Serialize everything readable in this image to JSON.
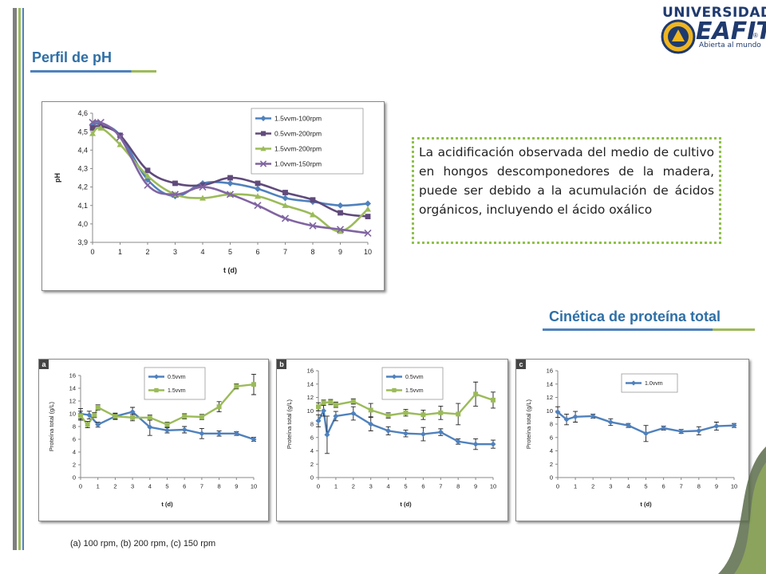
{
  "headings": {
    "ph": "Perfil de pH",
    "protein": "Cinética de proteína total"
  },
  "logo": {
    "university": "UNIVERSIDAD",
    "name": "EAFIT",
    "registered": "®",
    "tagline": "Abierta al mundo"
  },
  "note": "La acidificación observada del medio de cultivo en hongos descomponedores de la madera, puede ser debido a la acumulación de ácidos orgánicos, incluyendo el ácido oxálico",
  "caption": "(a) 100 rpm, (b) 200 rpm, (c) 150 rpm",
  "colors": {
    "blue": "#4f81bd",
    "purple": "#604a7b",
    "green": "#9bbb59",
    "lavender": "#8064a2",
    "heading": "#2f6fa6"
  },
  "chart_data": [
    {
      "id": "ph",
      "type": "line",
      "xlabel": "t (d)",
      "ylabel": "pH",
      "xlim": [
        0,
        10
      ],
      "ylim": [
        3.9,
        4.6
      ],
      "xticks": [
        "0",
        "1",
        "2",
        "3",
        "4",
        "5",
        "6",
        "7",
        "8",
        "9",
        "10"
      ],
      "yticks": [
        "3,9",
        "4,0",
        "4,1",
        "4,2",
        "4,3",
        "4,4",
        "4,5",
        "4,6"
      ],
      "legend": "top-right",
      "series": [
        {
          "name": "1.5vvm-100rpm",
          "color": "#4f81bd",
          "marker": "diamond",
          "x": [
            0,
            0.3,
            1,
            2,
            3,
            4,
            5,
            6,
            7,
            8,
            9,
            10
          ],
          "values": [
            4.54,
            4.54,
            4.48,
            4.24,
            4.15,
            4.22,
            4.22,
            4.19,
            4.14,
            4.12,
            4.1,
            4.11
          ]
        },
        {
          "name": "0.5vvm-200rpm",
          "color": "#604a7b",
          "marker": "square",
          "x": [
            0,
            0.3,
            1,
            2,
            3,
            4,
            5,
            6,
            7,
            8,
            9,
            10
          ],
          "values": [
            4.52,
            4.53,
            4.48,
            4.29,
            4.22,
            4.21,
            4.25,
            4.22,
            4.17,
            4.13,
            4.06,
            4.04
          ]
        },
        {
          "name": "1.5vvm-200rpm",
          "color": "#9bbb59",
          "marker": "triangle",
          "x": [
            0,
            0.3,
            1,
            2,
            3,
            4,
            5,
            6,
            7,
            8,
            9,
            10
          ],
          "values": [
            4.49,
            4.52,
            4.43,
            4.26,
            4.16,
            4.14,
            4.16,
            4.15,
            4.1,
            4.05,
            3.96,
            4.08
          ]
        },
        {
          "name": "1.0vvm-150rpm",
          "color": "#8064a2",
          "marker": "x",
          "x": [
            0,
            0.3,
            1,
            2,
            3,
            4,
            5,
            6,
            7,
            8,
            9,
            10
          ],
          "values": [
            4.55,
            4.55,
            4.47,
            4.21,
            4.16,
            4.2,
            4.16,
            4.1,
            4.03,
            3.99,
            3.97,
            3.95
          ]
        }
      ]
    },
    {
      "id": "a",
      "panel_label": "a",
      "type": "line",
      "xlabel": "t  (d)",
      "ylabel": "Proteína total (g/L)",
      "xlim": [
        0,
        10
      ],
      "ylim": [
        0,
        16
      ],
      "xticks": [
        "0",
        "1",
        "2",
        "3",
        "4",
        "5",
        "6",
        "7",
        "8",
        "9",
        "10"
      ],
      "yticks": [
        "0",
        "2",
        "4",
        "6",
        "8",
        "10",
        "12",
        "14",
        "16"
      ],
      "legend": "top-center",
      "series": [
        {
          "name": "0.5vvm",
          "color": "#4f81bd",
          "marker": "diamond",
          "x": [
            0,
            0.5,
            1,
            2,
            3,
            4,
            5,
            6,
            7,
            8,
            9,
            10
          ],
          "values": [
            10.0,
            9.8,
            8.3,
            9.6,
            10.3,
            7.9,
            7.4,
            7.5,
            6.9,
            6.9,
            6.9,
            6.0
          ],
          "err": [
            0.8,
            0.6,
            0.4,
            0.5,
            0.7,
            1.3,
            0.4,
            0.5,
            0.8,
            0.4,
            0.3,
            0.3
          ]
        },
        {
          "name": "1.5vvm",
          "color": "#9bbb59",
          "marker": "square",
          "x": [
            0,
            0.4,
            0.8,
            1,
            2,
            3,
            4,
            5,
            6,
            7,
            8,
            9,
            10
          ],
          "values": [
            9.7,
            8.3,
            9.8,
            11.0,
            9.6,
            9.4,
            9.4,
            8.3,
            9.6,
            9.5,
            11.1,
            14.3,
            14.6
          ],
          "err": [
            0.7,
            0.5,
            0.4,
            0.4,
            0.4,
            0.5,
            0.4,
            0.4,
            0.4,
            0.4,
            0.8,
            0.4,
            1.6
          ]
        }
      ]
    },
    {
      "id": "b",
      "panel_label": "b",
      "type": "line",
      "xlabel": "t  (d)",
      "ylabel": "Proteína total (g/L)",
      "xlim": [
        0,
        10
      ],
      "ylim": [
        0,
        16
      ],
      "xticks": [
        "0",
        "1",
        "2",
        "3",
        "4",
        "5",
        "6",
        "7",
        "8",
        "9",
        "10"
      ],
      "yticks": [
        "0",
        "2",
        "4",
        "6",
        "8",
        "10",
        "12",
        "14",
        "16"
      ],
      "legend": "top-center",
      "series": [
        {
          "name": "0.5vvm",
          "color": "#4f81bd",
          "marker": "diamond",
          "x": [
            0,
            0.3,
            0.5,
            1,
            2,
            3,
            4,
            5,
            6,
            7,
            8,
            9,
            10
          ],
          "values": [
            8.5,
            10.0,
            6.4,
            9.2,
            9.6,
            8.0,
            7.0,
            6.6,
            6.5,
            6.8,
            5.4,
            5.0,
            5.0
          ],
          "err": [
            0.9,
            0.8,
            2.8,
            0.7,
            1.0,
            1.0,
            0.6,
            0.5,
            1.0,
            0.5,
            0.4,
            0.8,
            0.6
          ]
        },
        {
          "name": "1.5vvm",
          "color": "#9bbb59",
          "marker": "square",
          "x": [
            0,
            0.3,
            0.7,
            1,
            2,
            3,
            4,
            5,
            6,
            7,
            8,
            9,
            10
          ],
          "values": [
            10.6,
            11.2,
            11.3,
            10.9,
            11.4,
            10.1,
            9.3,
            9.7,
            9.4,
            9.7,
            9.5,
            12.5,
            11.6
          ],
          "err": [
            0.6,
            0.4,
            0.4,
            0.4,
            0.4,
            1.0,
            0.4,
            0.5,
            0.7,
            1.0,
            1.6,
            1.8,
            1.2
          ]
        }
      ]
    },
    {
      "id": "c",
      "panel_label": "c",
      "type": "line",
      "xlabel": "t  (d)",
      "ylabel": "Proteína total (g/L)",
      "xlim": [
        0,
        10
      ],
      "ylim": [
        0,
        16
      ],
      "xticks": [
        "0",
        "1",
        "2",
        "3",
        "4",
        "5",
        "6",
        "7",
        "8",
        "9",
        "10"
      ],
      "yticks": [
        "0",
        "2",
        "4",
        "6",
        "8",
        "10",
        "12",
        "14",
        "16"
      ],
      "legend": "top-center",
      "series": [
        {
          "name": "1.0vvm",
          "color": "#4f81bd",
          "marker": "diamond",
          "x": [
            0,
            0.5,
            1,
            2,
            3,
            4,
            5,
            6,
            7,
            8,
            9,
            10
          ],
          "values": [
            9.8,
            8.7,
            9.1,
            9.2,
            8.3,
            7.8,
            6.6,
            7.4,
            6.9,
            7.0,
            7.7,
            7.8
          ],
          "err": [
            0.8,
            0.8,
            0.8,
            0.3,
            0.5,
            0.3,
            1.2,
            0.3,
            0.3,
            0.6,
            0.6,
            0.3
          ]
        }
      ]
    }
  ]
}
